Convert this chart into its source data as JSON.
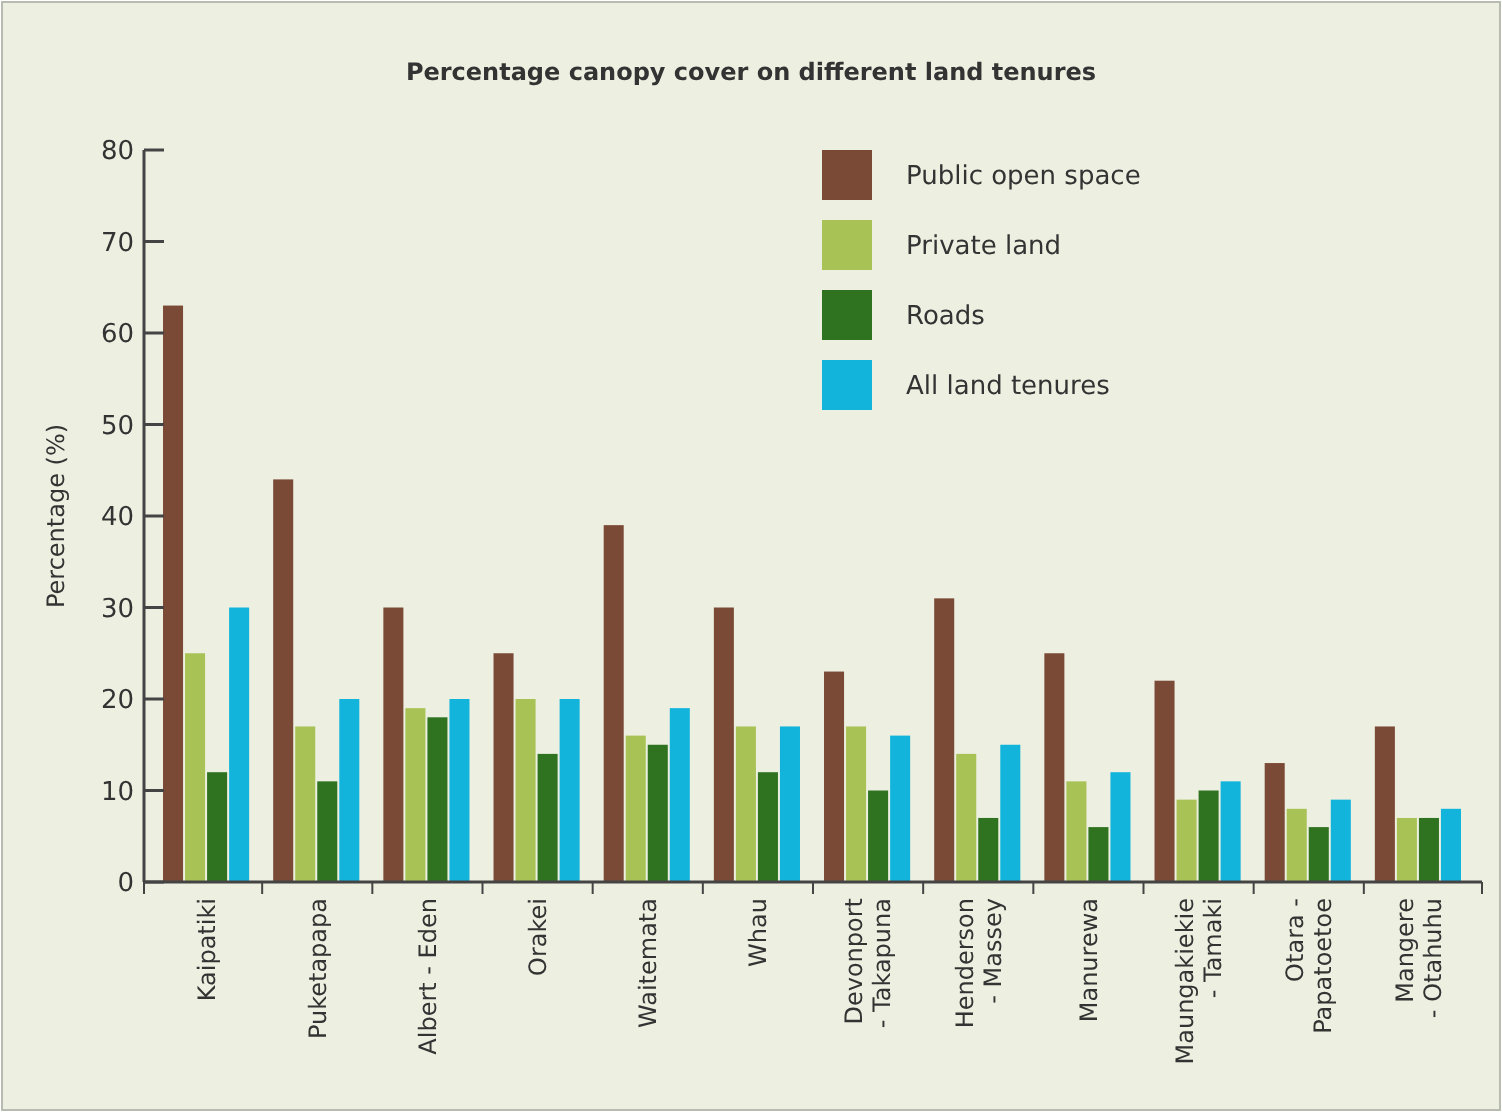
{
  "chart_data": {
    "type": "bar",
    "title": "Percentage canopy cover on different land tenures",
    "ylabel": "Percentage (%)",
    "categories": [
      "Kaipatiki",
      "Puketapapa",
      "Albert - Eden",
      "Orakei",
      "Waitemata",
      "Whau",
      "Devonport\n- Takapuna",
      "Henderson\n- Massey",
      "Manurewa",
      "Maungakiekie\n- Tamaki",
      "Otara -\nPapatoetoe",
      "Mangere\n- Otahuhu"
    ],
    "series": [
      {
        "name": "Public open space",
        "color": "#7b4a36",
        "values": [
          63,
          44,
          30,
          25,
          39,
          30,
          23,
          31,
          25,
          22,
          13,
          17
        ]
      },
      {
        "name": "Private land",
        "color": "#a8c256",
        "values": [
          25,
          17,
          19,
          20,
          16,
          17,
          17,
          14,
          11,
          9,
          8,
          7
        ]
      },
      {
        "name": "Roads",
        "color": "#2f7320",
        "values": [
          12,
          11,
          18,
          14,
          15,
          12,
          10,
          7,
          6,
          10,
          6,
          7
        ]
      },
      {
        "name": "All land tenures",
        "color": "#12b4dc",
        "values": [
          30,
          20,
          20,
          20,
          19,
          17,
          16,
          15,
          12,
          11,
          9,
          8
        ]
      }
    ],
    "ylim": [
      0,
      80
    ],
    "yticks": [
      0,
      10,
      20,
      30,
      40,
      50,
      60,
      70,
      80
    ],
    "grid": false,
    "legend": "top right"
  }
}
